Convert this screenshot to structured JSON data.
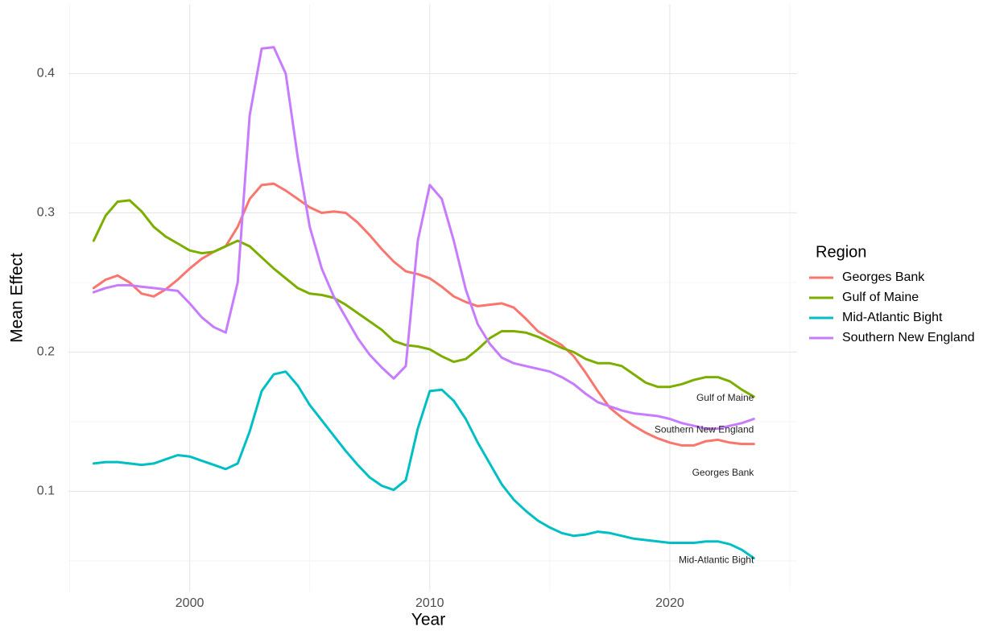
{
  "chart_data": {
    "type": "line",
    "x_label": "Year",
    "y_label": "Mean Effect",
    "legend_title": "Region",
    "legend": "right",
    "grid": true,
    "xlim": [
      1994.95,
      2025.3
    ],
    "ylim": [
      0.028,
      0.45
    ],
    "xticks": [
      2000,
      2010,
      2020
    ],
    "yticks": [
      0.1,
      0.2,
      0.3,
      0.4
    ],
    "minor_grid": {
      "x": [
        1995,
        2005,
        2015,
        2025
      ],
      "y": [
        0.05,
        0.15,
        0.25,
        0.35
      ]
    },
    "x": [
      1996,
      1996.5,
      1997,
      1997.5,
      1998,
      1998.5,
      1999,
      1999.5,
      2000,
      2000.5,
      2001,
      2001.5,
      2002,
      2002.5,
      2003,
      2003.5,
      2004,
      2004.5,
      2005,
      2005.5,
      2006,
      2006.5,
      2007,
      2007.5,
      2008,
      2008.5,
      2009,
      2009.5,
      2010,
      2010.5,
      2011,
      2011.5,
      2012,
      2012.5,
      2013,
      2013.5,
      2014,
      2014.5,
      2015,
      2015.5,
      2016,
      2016.5,
      2017,
      2017.5,
      2018,
      2018.5,
      2019,
      2019.5,
      2020,
      2020.5,
      2021,
      2021.5,
      2022,
      2022.5,
      2023,
      2023.5
    ],
    "series": [
      {
        "name": "Georges Bank",
        "color": "#F8766D",
        "values": [
          0.246,
          0.252,
          0.255,
          0.25,
          0.242,
          0.24,
          0.245,
          0.252,
          0.26,
          0.267,
          0.272,
          0.276,
          0.29,
          0.31,
          0.32,
          0.321,
          0.316,
          0.31,
          0.304,
          0.3,
          0.301,
          0.3,
          0.293,
          0.284,
          0.274,
          0.265,
          0.258,
          0.256,
          0.253,
          0.247,
          0.24,
          0.236,
          0.233,
          0.234,
          0.235,
          0.232,
          0.224,
          0.215,
          0.21,
          0.205,
          0.197,
          0.185,
          0.172,
          0.16,
          0.153,
          0.147,
          0.142,
          0.138,
          0.135,
          0.133,
          0.133,
          0.136,
          0.137,
          0.135,
          0.134,
          0.134
        ]
      },
      {
        "name": "Gulf of Maine",
        "color": "#7CAE00",
        "values": [
          0.28,
          0.298,
          0.308,
          0.309,
          0.301,
          0.29,
          0.283,
          0.278,
          0.273,
          0.271,
          0.272,
          0.276,
          0.28,
          0.276,
          0.268,
          0.26,
          0.253,
          0.246,
          0.242,
          0.241,
          0.239,
          0.234,
          0.228,
          0.222,
          0.216,
          0.208,
          0.205,
          0.204,
          0.202,
          0.197,
          0.193,
          0.195,
          0.202,
          0.21,
          0.215,
          0.215,
          0.214,
          0.211,
          0.207,
          0.203,
          0.2,
          0.195,
          0.192,
          0.192,
          0.19,
          0.184,
          0.178,
          0.175,
          0.175,
          0.177,
          0.18,
          0.182,
          0.182,
          0.179,
          0.173,
          0.168
        ]
      },
      {
        "name": "Mid-Atlantic Bight",
        "color": "#00BFC4",
        "values": [
          0.12,
          0.121,
          0.121,
          0.12,
          0.119,
          0.12,
          0.123,
          0.126,
          0.125,
          0.122,
          0.119,
          0.116,
          0.12,
          0.143,
          0.172,
          0.184,
          0.186,
          0.176,
          0.162,
          0.151,
          0.14,
          0.129,
          0.119,
          0.11,
          0.104,
          0.101,
          0.108,
          0.145,
          0.172,
          0.173,
          0.165,
          0.152,
          0.135,
          0.12,
          0.105,
          0.094,
          0.086,
          0.079,
          0.074,
          0.07,
          0.068,
          0.069,
          0.071,
          0.07,
          0.068,
          0.066,
          0.065,
          0.064,
          0.063,
          0.063,
          0.063,
          0.064,
          0.064,
          0.062,
          0.058,
          0.052
        ]
      },
      {
        "name": "Southern New England",
        "color": "#C77CFF",
        "values": [
          0.243,
          0.246,
          0.248,
          0.248,
          0.247,
          0.246,
          0.245,
          0.244,
          0.235,
          0.225,
          0.218,
          0.214,
          0.25,
          0.37,
          0.418,
          0.419,
          0.4,
          0.34,
          0.29,
          0.26,
          0.24,
          0.225,
          0.21,
          0.198,
          0.189,
          0.181,
          0.19,
          0.28,
          0.32,
          0.31,
          0.28,
          0.245,
          0.22,
          0.206,
          0.196,
          0.192,
          0.19,
          0.188,
          0.186,
          0.182,
          0.177,
          0.17,
          0.164,
          0.161,
          0.158,
          0.156,
          0.155,
          0.154,
          0.152,
          0.149,
          0.147,
          0.145,
          0.145,
          0.147,
          0.149,
          0.152
        ]
      }
    ]
  }
}
